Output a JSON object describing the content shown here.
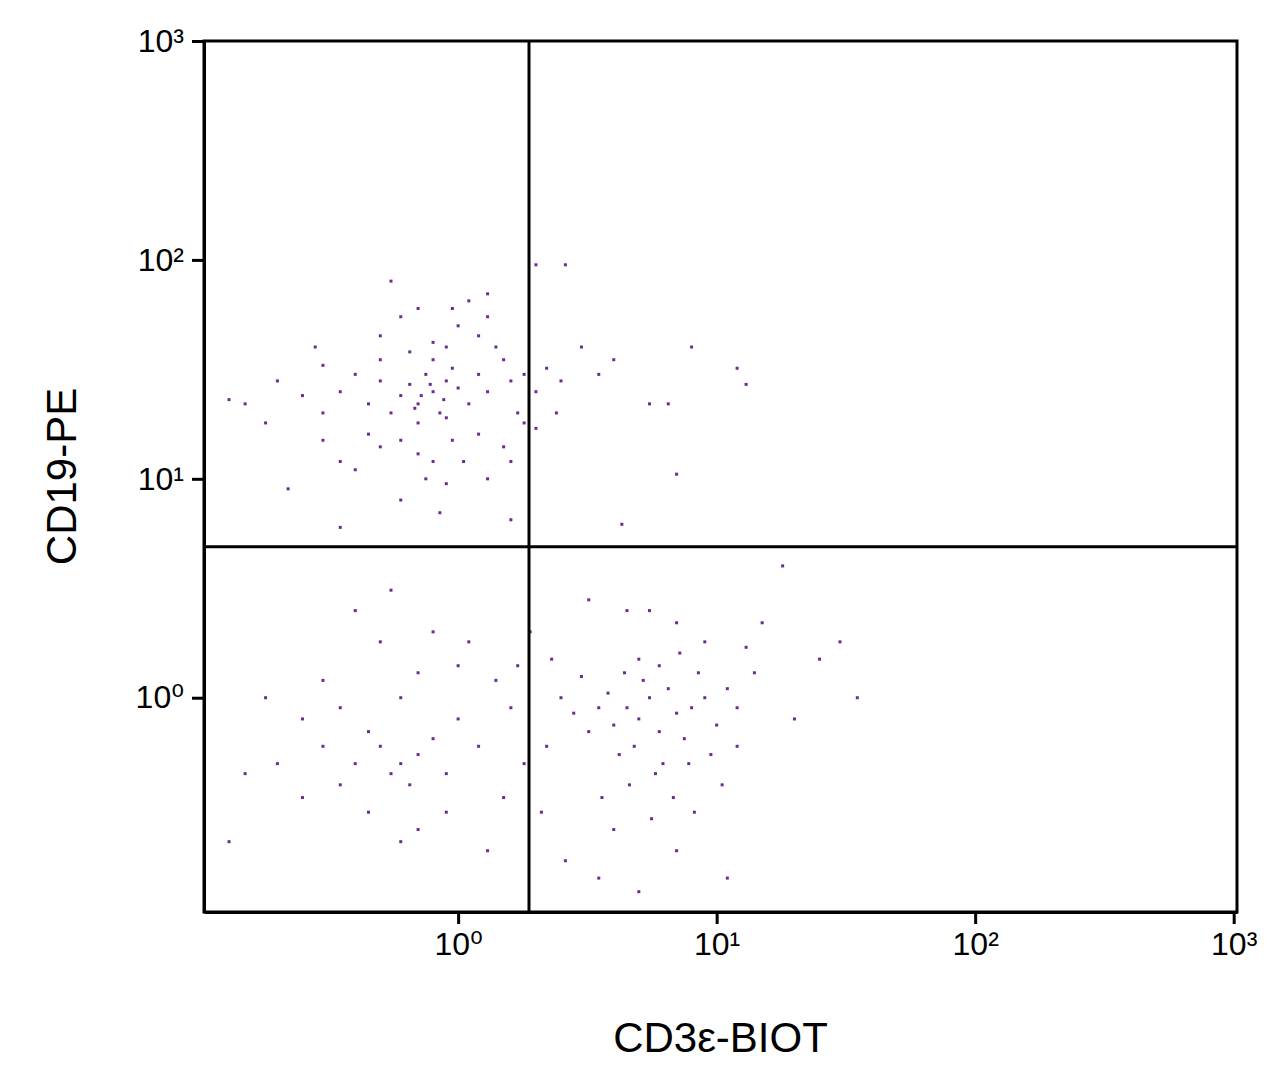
{
  "chart_data": {
    "type": "scatter",
    "x_label": "CD3ε-BIOT",
    "y_label": "CD19-PE",
    "log": true,
    "color": "#6b2c91",
    "marker": "square",
    "xlim": [
      0.104,
      1030
    ],
    "ylim": [
      0.105,
      1000
    ],
    "xticks": [
      {
        "value": 1,
        "label": "10⁰"
      },
      {
        "value": 10,
        "label": "10¹"
      },
      {
        "value": 100,
        "label": "10²"
      },
      {
        "value": 1000,
        "label": "10³"
      }
    ],
    "yticks": [
      {
        "value": 1,
        "label": "10⁰"
      },
      {
        "value": 10,
        "label": "10¹"
      },
      {
        "value": 100,
        "label": "10²"
      },
      {
        "value": 1000,
        "label": "10³"
      }
    ],
    "gate": [
      1.88,
      4.89
    ],
    "x": [
      0.8,
      0.7,
      0.9,
      0.75,
      0.85,
      0.6,
      1.0,
      0.95,
      0.65,
      0.7,
      1.1,
      0.8,
      0.55,
      0.9,
      1.2,
      0.5,
      0.72,
      0.88,
      0.78,
      0.68,
      1.3,
      0.45,
      0.4,
      0.35,
      0.3,
      0.25,
      0.2,
      0.15,
      0.13,
      0.18,
      1.5,
      1.6,
      1.4,
      1.8,
      2.0,
      2.2,
      2.5,
      1.7,
      1.2,
      1.0,
      0.6,
      0.7,
      0.55,
      0.5,
      1.1,
      1.3,
      0.9,
      0.8,
      0.65,
      0.6,
      0.7,
      0.8,
      0.5,
      0.45,
      0.95,
      1.05,
      1.2,
      0.4,
      0.3,
      0.35,
      0.75,
      0.9,
      0.6,
      0.85,
      0.35,
      0.22,
      1.3,
      1.5,
      1.8,
      1.6,
      2.0,
      2.6,
      3.0,
      3.5,
      4.0,
      5.5,
      6.5,
      7.0,
      8.0,
      12,
      13,
      4.3,
      1.6,
      2.0,
      2.4,
      1.3,
      0.95,
      0.5,
      0.3,
      0.28,
      5,
      4.5,
      6,
      5.5,
      4,
      7,
      3.5,
      6.5,
      8,
      4.8,
      5.2,
      3.8,
      7.5,
      9,
      6.2,
      4.2,
      3.2,
      2.8,
      2.5,
      2.2,
      10,
      11,
      12,
      8.5,
      7.8,
      5.8,
      4.6,
      3.6,
      6.8,
      9.5,
      5.0,
      6.0,
      7.2,
      4.4,
      3.0,
      8.2,
      5.6,
      4.0,
      10.5,
      12,
      3.2,
      4.5,
      5.5,
      7,
      9,
      13,
      15,
      18,
      25,
      30,
      35,
      20,
      14,
      2.3,
      2.1,
      2.6,
      3.5,
      5,
      7,
      11,
      0.6,
      0.55,
      0.7,
      0.5,
      0.65,
      0.45,
      0.8,
      0.9,
      0.4,
      0.35,
      0.3,
      0.25,
      0.2,
      0.15,
      0.13,
      0.18,
      1.0,
      1.2,
      1.4,
      1.6,
      0.6,
      0.7,
      0.5,
      0.55,
      0.8,
      1.1,
      0.4,
      0.3,
      0.9,
      0.7,
      1.5,
      1.8,
      1.7,
      0.45,
      0.35,
      0.25,
      1.3,
      0.6,
      1.9,
      1.0
    ],
    "values": [
      25,
      22,
      28,
      30,
      20,
      24,
      26,
      32,
      27,
      18,
      22,
      35,
      20,
      19,
      30,
      28,
      24,
      23,
      27,
      21,
      25,
      22,
      30,
      25,
      20,
      24,
      28,
      22,
      23,
      18,
      35,
      28,
      40,
      30,
      25,
      32,
      28,
      20,
      45,
      50,
      55,
      60,
      80,
      45,
      65,
      55,
      40,
      42,
      38,
      15,
      13,
      12,
      14,
      16,
      15,
      12,
      16,
      11,
      15,
      12,
      10,
      9.5,
      8,
      7,
      6,
      9,
      10,
      14,
      18,
      12,
      95,
      95,
      40,
      30,
      35,
      22,
      22,
      10.5,
      40,
      32,
      27,
      6.2,
      6.5,
      17,
      20,
      70,
      60,
      35,
      33,
      40,
      0.8,
      0.9,
      0.7,
      1.0,
      0.75,
      0.85,
      0.9,
      1.1,
      0.9,
      0.6,
      1.2,
      1.05,
      0.65,
      1.0,
      0.5,
      0.55,
      0.7,
      0.85,
      1.0,
      0.6,
      0.75,
      1.1,
      0.9,
      1.3,
      0.5,
      0.45,
      0.4,
      0.35,
      0.35,
      0.55,
      1.5,
      1.4,
      1.6,
      1.3,
      1.25,
      0.3,
      0.28,
      0.25,
      0.4,
      0.6,
      2.8,
      2.5,
      2.5,
      2.2,
      1.8,
      1.7,
      2.2,
      4,
      1.5,
      1.8,
      1.0,
      0.8,
      1.3,
      1.5,
      0.3,
      0.18,
      0.15,
      0.13,
      0.2,
      0.15,
      0.5,
      0.45,
      0.55,
      0.6,
      0.4,
      0.7,
      0.65,
      0.45,
      0.5,
      0.4,
      0.6,
      0.8,
      0.5,
      0.45,
      0.22,
      1.0,
      0.8,
      0.6,
      1.2,
      0.9,
      1.0,
      1.3,
      1.8,
      3.1,
      2.0,
      1.8,
      2.5,
      1.2,
      0.3,
      0.25,
      0.35,
      0.5,
      1.4,
      0.3,
      0.9,
      0.35,
      0.2,
      0.22,
      2.0,
      1.4
    ]
  }
}
